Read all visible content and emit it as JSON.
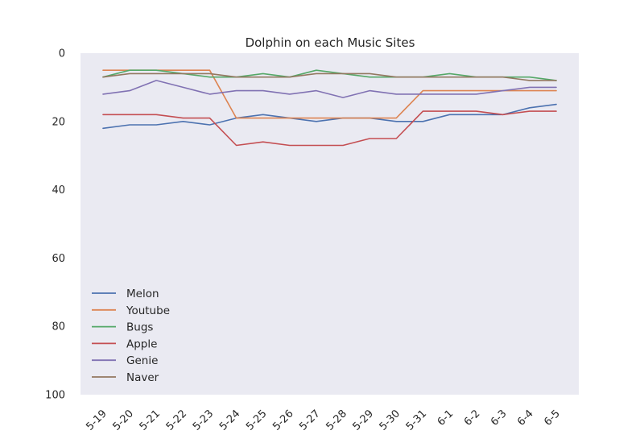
{
  "chart_data": {
    "type": "line",
    "title": "Dolphin on each Music Sites",
    "xlabel": "",
    "ylabel": "",
    "y_inverted": true,
    "ylim": [
      0,
      100
    ],
    "yticks": [
      "0",
      "20",
      "40",
      "60",
      "80",
      "100"
    ],
    "grid": false,
    "legend_position": "lower-left",
    "categories": [
      "5-19",
      "5-20",
      "5-21",
      "5-22",
      "5-23",
      "5-24",
      "5-25",
      "5-26",
      "5-27",
      "5-28",
      "5-29",
      "5-30",
      "5-31",
      "6-1",
      "6-2",
      "6-3",
      "6-4",
      "6-5"
    ],
    "series": [
      {
        "name": "Melon",
        "color": "#4c72b0",
        "values": [
          22,
          21,
          21,
          20,
          21,
          19,
          18,
          19,
          20,
          19,
          19,
          20,
          20,
          18,
          18,
          18,
          16,
          15
        ]
      },
      {
        "name": "Youtube",
        "color": "#dd8452",
        "values": [
          5,
          5,
          5,
          5,
          5,
          19,
          19,
          19,
          19,
          19,
          19,
          19,
          11,
          11,
          11,
          11,
          11,
          11
        ]
      },
      {
        "name": "Bugs",
        "color": "#55a868",
        "values": [
          7,
          5,
          5,
          6,
          7,
          7,
          6,
          7,
          5,
          6,
          7,
          7,
          7,
          6,
          7,
          7,
          7,
          8
        ]
      },
      {
        "name": "Apple",
        "color": "#c44e52",
        "values": [
          18,
          18,
          18,
          19,
          19,
          27,
          26,
          27,
          27,
          27,
          25,
          25,
          17,
          17,
          17,
          18,
          17,
          17
        ]
      },
      {
        "name": "Genie",
        "color": "#8172b3",
        "values": [
          12,
          11,
          8,
          10,
          12,
          11,
          11,
          12,
          11,
          13,
          11,
          12,
          12,
          12,
          12,
          11,
          10,
          10
        ]
      },
      {
        "name": "Naver",
        "color": "#937860",
        "values": [
          7,
          6,
          6,
          6,
          6,
          7,
          7,
          7,
          6,
          6,
          6,
          7,
          7,
          7,
          7,
          7,
          8,
          8
        ]
      }
    ]
  },
  "style": {
    "plot_bg": "#eaeaf2",
    "text_color": "#262626"
  }
}
